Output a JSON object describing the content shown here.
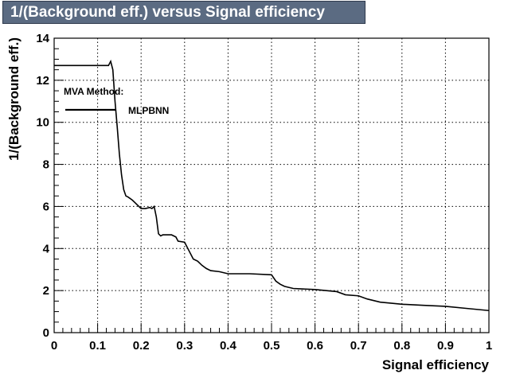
{
  "title": "1/(Background eff.) versus Signal efficiency",
  "legend": {
    "header": "MVA Method:",
    "entries": [
      "MLPBNN"
    ]
  },
  "colors": {
    "title_bg": "#5b6b82",
    "title_text": "#ffffff",
    "line": "#000000",
    "grid": "#000000"
  },
  "chart_data": {
    "type": "line",
    "title": "1/(Background eff.) versus Signal efficiency",
    "xlabel": "Signal efficiency",
    "ylabel": "1/(Background eff.)",
    "xlim": [
      0,
      1
    ],
    "ylim": [
      0,
      14
    ],
    "grid": true,
    "legend_position": "top-left",
    "x_ticks": [
      0,
      0.1,
      0.2,
      0.3,
      0.4,
      0.5,
      0.6,
      0.7,
      0.8,
      0.9,
      1
    ],
    "x_tick_labels": [
      "0",
      "0.1",
      "0.2",
      "0.3",
      "0.4",
      "0.5",
      "0.6",
      "0.7",
      "0.8",
      "0.9",
      "1"
    ],
    "y_ticks": [
      0,
      2,
      4,
      6,
      8,
      10,
      12,
      14
    ],
    "y_tick_labels": [
      "0",
      "2",
      "4",
      "6",
      "8",
      "10",
      "12",
      "14"
    ],
    "series": [
      {
        "name": "MLPBNN",
        "x": [
          0.0,
          0.125,
          0.13,
          0.135,
          0.14,
          0.145,
          0.15,
          0.155,
          0.16,
          0.165,
          0.17,
          0.18,
          0.19,
          0.2,
          0.21,
          0.22,
          0.225,
          0.23,
          0.235,
          0.24,
          0.245,
          0.25,
          0.27,
          0.28,
          0.285,
          0.3,
          0.31,
          0.32,
          0.33,
          0.34,
          0.35,
          0.36,
          0.38,
          0.4,
          0.45,
          0.5,
          0.51,
          0.52,
          0.53,
          0.55,
          0.6,
          0.65,
          0.67,
          0.7,
          0.72,
          0.75,
          0.8,
          0.85,
          0.9,
          0.95,
          1.0
        ],
        "y": [
          12.7,
          12.7,
          12.9,
          12.5,
          11.0,
          9.8,
          8.5,
          7.5,
          6.8,
          6.5,
          6.45,
          6.3,
          6.1,
          5.9,
          5.9,
          5.95,
          5.9,
          6.0,
          5.5,
          4.7,
          4.6,
          4.65,
          4.65,
          4.55,
          4.35,
          4.3,
          3.9,
          3.5,
          3.4,
          3.2,
          3.05,
          2.95,
          2.9,
          2.8,
          2.8,
          2.75,
          2.45,
          2.3,
          2.2,
          2.1,
          2.05,
          1.95,
          1.8,
          1.75,
          1.6,
          1.45,
          1.35,
          1.3,
          1.25,
          1.15,
          1.05
        ]
      }
    ]
  }
}
